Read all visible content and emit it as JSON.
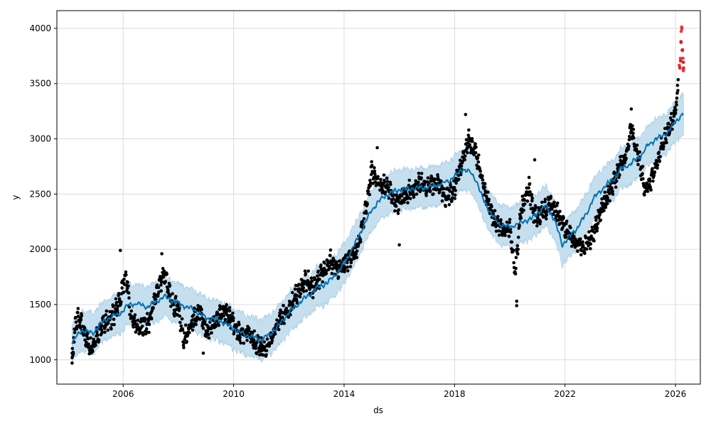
{
  "chart_data": {
    "type": "scatter",
    "title": "",
    "xlabel": "ds",
    "ylabel": "y",
    "xlim": [
      2003.6,
      2026.9
    ],
    "ylim": [
      780,
      4160
    ],
    "x_ticks": [
      "2006",
      "2010",
      "2014",
      "2018",
      "2022",
      "2026"
    ],
    "y_ticks": [
      "1000",
      "1500",
      "2000",
      "2500",
      "3000",
      "3500",
      "4000"
    ],
    "grid": true,
    "colors": {
      "observed": "#000000",
      "outliers": "#e31a1c",
      "forecast_line": "#0072B2",
      "interval_band": "#bcd9ec"
    },
    "forecast": {
      "x": [
        2004.15,
        2004.5,
        2004.9,
        2005.2,
        2005.5,
        2005.9,
        2006.2,
        2006.5,
        2006.9,
        2007.2,
        2007.5,
        2007.9,
        2008.2,
        2008.6,
        2009.0,
        2009.4,
        2009.7,
        2010.0,
        2010.4,
        2010.8,
        2011.0,
        2011.3,
        2011.7,
        2012.0,
        2012.4,
        2012.8,
        2013.0,
        2013.4,
        2013.8,
        2014.0,
        2014.4,
        2014.8,
        2015.0,
        2015.4,
        2015.8,
        2016.0,
        2016.4,
        2016.8,
        2017.0,
        2017.4,
        2017.8,
        2018.0,
        2018.3,
        2018.6,
        2018.8,
        2019.0,
        2019.3,
        2019.6,
        2020.0,
        2020.4,
        2020.8,
        2021.0,
        2021.3,
        2021.6,
        2021.9,
        2022.1,
        2022.4,
        2022.8,
        2023.0,
        2023.4,
        2023.8,
        2024.0,
        2024.4,
        2024.8,
        2025.0,
        2025.3,
        2025.7,
        2026.0,
        2026.3
      ],
      "yhat": [
        1160,
        1270,
        1240,
        1330,
        1380,
        1420,
        1500,
        1510,
        1480,
        1530,
        1570,
        1520,
        1490,
        1450,
        1380,
        1360,
        1330,
        1280,
        1230,
        1200,
        1180,
        1230,
        1330,
        1430,
        1520,
        1600,
        1650,
        1700,
        1800,
        1870,
        2050,
        2260,
        2360,
        2470,
        2520,
        2540,
        2550,
        2560,
        2560,
        2580,
        2620,
        2660,
        2730,
        2690,
        2620,
        2470,
        2330,
        2230,
        2200,
        2240,
        2280,
        2330,
        2390,
        2280,
        2040,
        2100,
        2180,
        2330,
        2450,
        2560,
        2650,
        2720,
        2780,
        2860,
        2940,
        3000,
        3050,
        3160,
        3230
      ],
      "interval_half_width": 180
    },
    "observed": {
      "x": [
        2004.15,
        2004.3,
        2004.5,
        2004.7,
        2004.9,
        2005.1,
        2005.3,
        2005.6,
        2005.9,
        2006.1,
        2006.3,
        2006.6,
        2006.9,
        2007.2,
        2007.5,
        2007.8,
        2008.0,
        2008.2,
        2008.5,
        2008.8,
        2009.0,
        2009.3,
        2009.6,
        2009.9,
        2010.2,
        2010.5,
        2010.8,
        2011.1,
        2011.4,
        2011.7,
        2012.0,
        2012.3,
        2012.6,
        2012.9,
        2013.2,
        2013.5,
        2013.8,
        2014.1,
        2014.4,
        2014.7,
        2015.0,
        2015.3,
        2015.6,
        2015.9,
        2016.2,
        2016.5,
        2016.8,
        2017.1,
        2017.4,
        2017.7,
        2018.0,
        2018.2,
        2018.5,
        2018.8,
        2019.1,
        2019.4,
        2019.7,
        2020.0,
        2020.2,
        2020.4,
        2020.7,
        2020.9,
        2021.2,
        2021.5,
        2021.8,
        2022.1,
        2022.4,
        2022.7,
        2023.0,
        2023.3,
        2023.6,
        2023.9,
        2024.2,
        2024.4,
        2024.7,
        2024.9,
        2025.1,
        2025.4,
        2025.6,
        2025.8,
        2026.0,
        2026.1
      ],
      "y": [
        1050,
        1380,
        1320,
        1150,
        1080,
        1250,
        1330,
        1380,
        1550,
        1780,
        1350,
        1280,
        1320,
        1600,
        1780,
        1500,
        1450,
        1200,
        1350,
        1450,
        1250,
        1320,
        1450,
        1380,
        1230,
        1250,
        1150,
        1080,
        1220,
        1380,
        1450,
        1600,
        1720,
        1660,
        1780,
        1900,
        1820,
        1900,
        1950,
        2250,
        2700,
        2600,
        2550,
        2400,
        2500,
        2550,
        2600,
        2550,
        2620,
        2450,
        2550,
        2720,
        3000,
        2850,
        2500,
        2300,
        2180,
        2200,
        1800,
        2350,
        2550,
        2300,
        2350,
        2400,
        2300,
        2150,
        2050,
        2030,
        2120,
        2350,
        2500,
        2700,
        2850,
        3100,
        2800,
        2550,
        2600,
        2850,
        3000,
        3100,
        3250,
        3500
      ],
      "jitter": 60
    },
    "outliers": {
      "x": [
        2026.15,
        2026.18,
        2026.2,
        2026.22,
        2026.25,
        2026.28,
        2026.3
      ],
      "y": [
        3650,
        3720,
        3880,
        4000,
        3800,
        3700,
        3630
      ]
    }
  }
}
